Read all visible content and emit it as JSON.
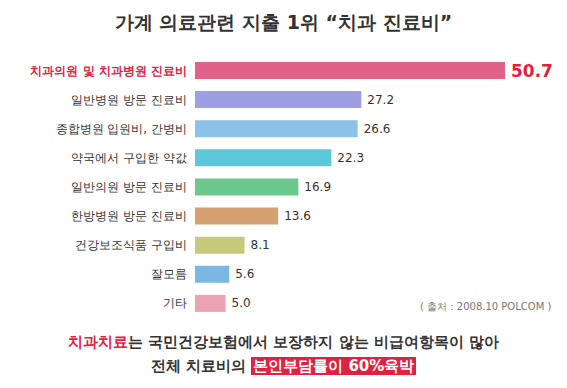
{
  "chart_data": {
    "type": "bar",
    "orientation": "horizontal",
    "title": "가계 의료관련 지출 1위 “치과 진료비”",
    "categories": [
      "치과의원 및 치과병원 진료비",
      "일반병원 방문 진료비",
      "종합병원 입원비, 간병비",
      "약국에서 구입한 약값",
      "일반의원 방문 진료비",
      "한방병원 방문 진료비",
      "건강보조식품 구입비",
      "잘모름",
      "기타"
    ],
    "values": [
      50.7,
      27.2,
      26.6,
      22.3,
      16.9,
      13.6,
      8.1,
      5.6,
      5.0
    ],
    "value_labels": [
      "50.7",
      "27.2",
      "26.6",
      "22.3",
      "16.9",
      "13.6",
      "8.1",
      "5.6",
      "5.0"
    ],
    "colors": [
      "#e0628a",
      "#9e9ee2",
      "#8cc2ea",
      "#5cc8d8",
      "#6cc88c",
      "#d4a070",
      "#c6c87a",
      "#7ab8e2",
      "#eaa2b4"
    ],
    "data_labels": true,
    "tick_labels": false,
    "grid": false,
    "source": "( 출처 : 2008.10 POLCOM )",
    "footer": [
      [
        "치과치료",
        "는 국민건강보험에서 보장하지 않는 비급여항목이 많아"
      ],
      [
        "전체 치료비의 ",
        "본인부담률이 60%육박"
      ]
    ]
  }
}
